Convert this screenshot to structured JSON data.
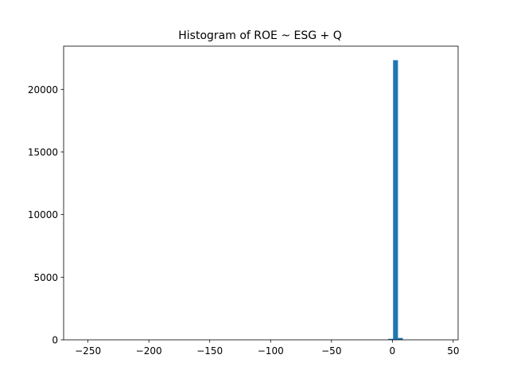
{
  "chart_data": {
    "type": "bar",
    "title": "Histogram of ROE ~ ESG + Q",
    "xlabel": "",
    "ylabel": "",
    "xlim": [
      -270,
      54
    ],
    "ylim": [
      0,
      23450
    ],
    "x_ticks": [
      -250,
      -200,
      -150,
      -100,
      -50,
      0,
      50
    ],
    "x_tick_labels": [
      "−250",
      "−200",
      "−150",
      "−100",
      "−50",
      "0",
      "50"
    ],
    "y_ticks": [
      0,
      5000,
      10000,
      15000,
      20000
    ],
    "y_tick_labels": [
      "0",
      "5000",
      "10000",
      "15000",
      "20000"
    ],
    "bins": [
      {
        "x0": -3.4,
        "x1": 0.6,
        "count": 80
      },
      {
        "x0": 0.6,
        "x1": 4.6,
        "count": 22330
      },
      {
        "x0": 4.6,
        "x1": 8.6,
        "count": 150
      }
    ],
    "bar_color": "#1f77b4",
    "grid": false
  }
}
